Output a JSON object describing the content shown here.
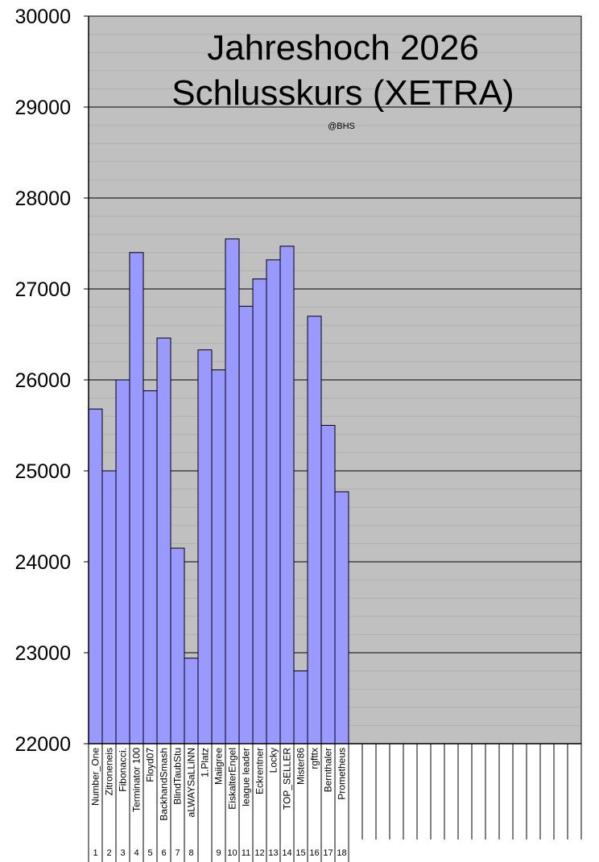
{
  "colors": {
    "plot_bg": "#c0c0c0",
    "bar_fill": "#9999ff",
    "bar_stroke": "#000000",
    "grid_major": "#000000",
    "grid_minor": "#b0b0b0",
    "text": "#000000"
  },
  "chart_data": {
    "type": "bar",
    "title_line1": "Jahreshoch 2026",
    "title_line2": "Schlusskurs (XETRA)",
    "subtitle": "@BHS",
    "ylim": [
      22000,
      30000
    ],
    "y_ticks": [
      "22000",
      "23000",
      "24000",
      "25000",
      "26000",
      "27000",
      "28000",
      "29000",
      "30000"
    ],
    "grid": true,
    "minor_grid_step": 200,
    "slot_count": 36,
    "categories": [
      "Number_One",
      "Zitroneneis",
      "Fibonacci.",
      "Terminator 100",
      "Floyd07",
      "BackhandSmash",
      "BlindTaubStu",
      "aLWAYSaLLiNN",
      "1.Platz",
      "Maiigree",
      "EiskalterEngel",
      "league leader",
      "Eckrentner",
      "Locky",
      "TOP_SELLER",
      "Mister86",
      "rgfttx",
      "Bernthaler",
      "Prometheus"
    ],
    "ranks": [
      "1",
      "2",
      "3",
      "4",
      "5",
      "6",
      "7",
      "8",
      "",
      "9",
      "10",
      "11",
      "12",
      "13",
      "14",
      "15",
      "16",
      "17",
      "18"
    ],
    "values": [
      25680,
      25000,
      26000,
      27400,
      25880,
      26460,
      24150,
      22940,
      26330,
      26110,
      27550,
      26810,
      27110,
      27320,
      27470,
      22800,
      26700,
      25500,
      24770
    ]
  }
}
